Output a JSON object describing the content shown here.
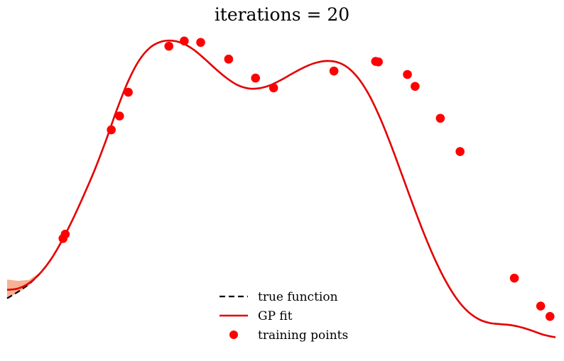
{
  "chart_data": {
    "type": "line",
    "title": "iterations = 20",
    "xlabel": "",
    "ylabel": "",
    "axes_visible": false,
    "grid": false,
    "xlim": [
      0.0,
      1.0
    ],
    "ylim": [
      -0.6,
      1.3
    ],
    "legend": {
      "placement": "bottom-center",
      "entries": [
        {
          "label": "true function",
          "style": "dashed",
          "color": "#000000"
        },
        {
          "label": "GP fit",
          "style": "solid",
          "color": "#e60000"
        },
        {
          "label": "training points",
          "style": "marker",
          "color": "#ff0000"
        }
      ]
    },
    "series": [
      {
        "name": "true function",
        "color": "#000000",
        "x": [
          0.0,
          0.02,
          0.04,
          0.06,
          0.08,
          0.1,
          0.12,
          0.14,
          0.16,
          0.18,
          0.2,
          0.22,
          0.24,
          0.26,
          0.28,
          0.3,
          0.32,
          0.34,
          0.36,
          0.38,
          0.4,
          0.42,
          0.44,
          0.46,
          0.48,
          0.5,
          0.52,
          0.54,
          0.56,
          0.58,
          0.6,
          0.62,
          0.64,
          0.66,
          0.68,
          0.7,
          0.72,
          0.74,
          0.76,
          0.78,
          0.8,
          0.82,
          0.84,
          0.86,
          0.88,
          0.9,
          0.92,
          0.94,
          0.96,
          0.98,
          1.0
        ],
        "y": [
          -0.327,
          -0.289,
          -0.244,
          -0.183,
          -0.101,
          0.007,
          0.133,
          0.272,
          0.42,
          0.586,
          0.765,
          0.926,
          1.049,
          1.125,
          1.16,
          1.167,
          1.152,
          1.115,
          1.062,
          1.004,
          0.951,
          0.91,
          0.89,
          0.891,
          0.909,
          0.94,
          0.976,
          1.01,
          1.036,
          1.049,
          1.044,
          1.014,
          0.951,
          0.853,
          0.72,
          0.562,
          0.39,
          0.216,
          0.05,
          -0.1,
          -0.228,
          -0.33,
          -0.403,
          -0.448,
          -0.47,
          -0.477,
          -0.483,
          -0.497,
          -0.518,
          -0.54,
          -0.553
        ]
      },
      {
        "name": "GP fit",
        "color": "#e60000",
        "x": [
          0.0,
          0.02,
          0.04,
          0.06,
          0.08,
          0.1,
          0.12,
          0.14,
          0.16,
          0.18,
          0.2,
          0.22,
          0.24,
          0.26,
          0.28,
          0.3,
          0.32,
          0.34,
          0.36,
          0.38,
          0.4,
          0.42,
          0.44,
          0.46,
          0.48,
          0.5,
          0.52,
          0.54,
          0.56,
          0.58,
          0.6,
          0.62,
          0.64,
          0.66,
          0.68,
          0.7,
          0.72,
          0.74,
          0.76,
          0.78,
          0.8,
          0.82,
          0.84,
          0.86,
          0.88,
          0.9,
          0.92,
          0.94,
          0.96,
          0.98,
          1.0
        ],
        "y": [
          -0.278,
          -0.27,
          -0.239,
          -0.182,
          -0.101,
          0.007,
          0.133,
          0.272,
          0.42,
          0.586,
          0.765,
          0.926,
          1.049,
          1.125,
          1.16,
          1.167,
          1.152,
          1.115,
          1.062,
          1.004,
          0.951,
          0.91,
          0.89,
          0.891,
          0.909,
          0.94,
          0.976,
          1.01,
          1.036,
          1.049,
          1.044,
          1.014,
          0.951,
          0.853,
          0.72,
          0.562,
          0.39,
          0.216,
          0.05,
          -0.1,
          -0.228,
          -0.33,
          -0.403,
          -0.448,
          -0.47,
          -0.477,
          -0.483,
          -0.497,
          -0.518,
          -0.54,
          -0.553
        ]
      }
    ],
    "confidence_band": {
      "color": "#f4a582",
      "x": [
        0.0,
        0.02,
        0.04,
        0.06,
        0.08
      ],
      "lower": [
        -0.325,
        -0.295,
        -0.252,
        -0.186,
        -0.102
      ],
      "upper": [
        -0.218,
        -0.226,
        -0.22,
        -0.177,
        -0.1
      ]
    },
    "training_points": {
      "name": "training points",
      "color": "#ff0000",
      "x": [
        0.102,
        0.106,
        0.19,
        0.205,
        0.221,
        0.295,
        0.323,
        0.353,
        0.404,
        0.453,
        0.486,
        0.596,
        0.672,
        0.677,
        0.73,
        0.744,
        0.79,
        0.826,
        0.925,
        0.973,
        0.99
      ],
      "y": [
        0.02,
        0.045,
        0.65,
        0.73,
        0.868,
        1.135,
        1.165,
        1.157,
        1.06,
        0.95,
        0.893,
        0.991,
        1.047,
        1.044,
        0.971,
        0.902,
        0.717,
        0.524,
        -0.21,
        -0.372,
        -0.432
      ]
    }
  }
}
